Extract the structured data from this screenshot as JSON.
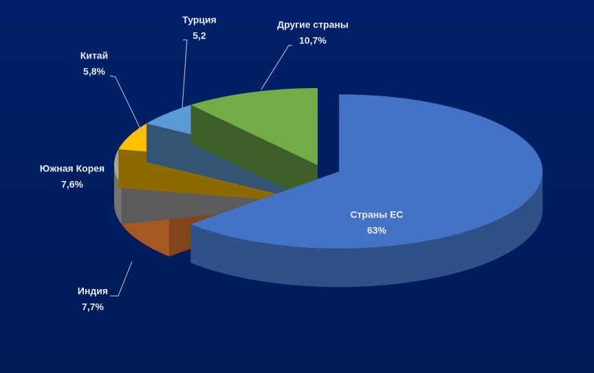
{
  "chart_data": {
    "type": "pie",
    "categories": [
      "Страны ЕС",
      "Индия",
      "Южная Корея",
      "Китай",
      "Турция",
      "Другие страны"
    ],
    "values": [
      63,
      7.7,
      7.6,
      5.8,
      5.2,
      10.7
    ],
    "value_labels": [
      "63%",
      "7,7%",
      "7,6%",
      "5,8%",
      "5,2",
      "10,7%"
    ],
    "colors": [
      "#4472c4",
      "#ed7d31",
      "#a5a5a5",
      "#ffc000",
      "#5b9bd5",
      "#70ad47"
    ],
    "exploded": [
      "Страны ЕС"
    ]
  }
}
